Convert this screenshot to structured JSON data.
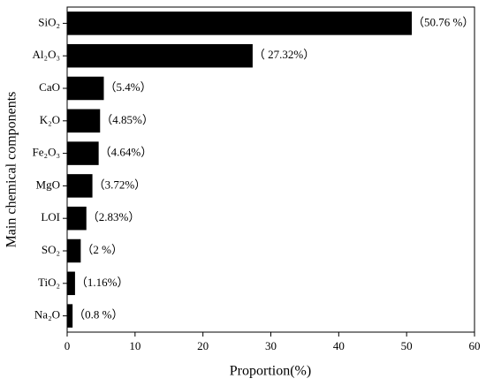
{
  "chart_data": {
    "type": "barh",
    "x_label": "Proportion(%)",
    "y_label": "Main chemical components",
    "categories": [
      "SiO₂",
      "Al₂O₃",
      "CaO",
      "K₂O",
      "Fe₂O₃",
      "MgO",
      "LOI",
      "SO₂",
      "TiO₂",
      "Na₂O"
    ],
    "values": [
      50.76,
      27.32,
      5.4,
      4.85,
      4.64,
      3.72,
      2.83,
      2,
      1.16,
      0.8
    ],
    "value_labels": [
      "（50.76 %）",
      "（ 27.32%）",
      "（5.4%）",
      "（4.85%）",
      "（4.64%）",
      "（3.72%）",
      "（2.83%）",
      "（2 %）",
      "（1.16%）",
      "（0.8 %）"
    ],
    "color": "#000000",
    "xlim": [
      0,
      60
    ],
    "xticks": [
      0,
      10,
      20,
      30,
      40,
      50,
      60
    ]
  }
}
